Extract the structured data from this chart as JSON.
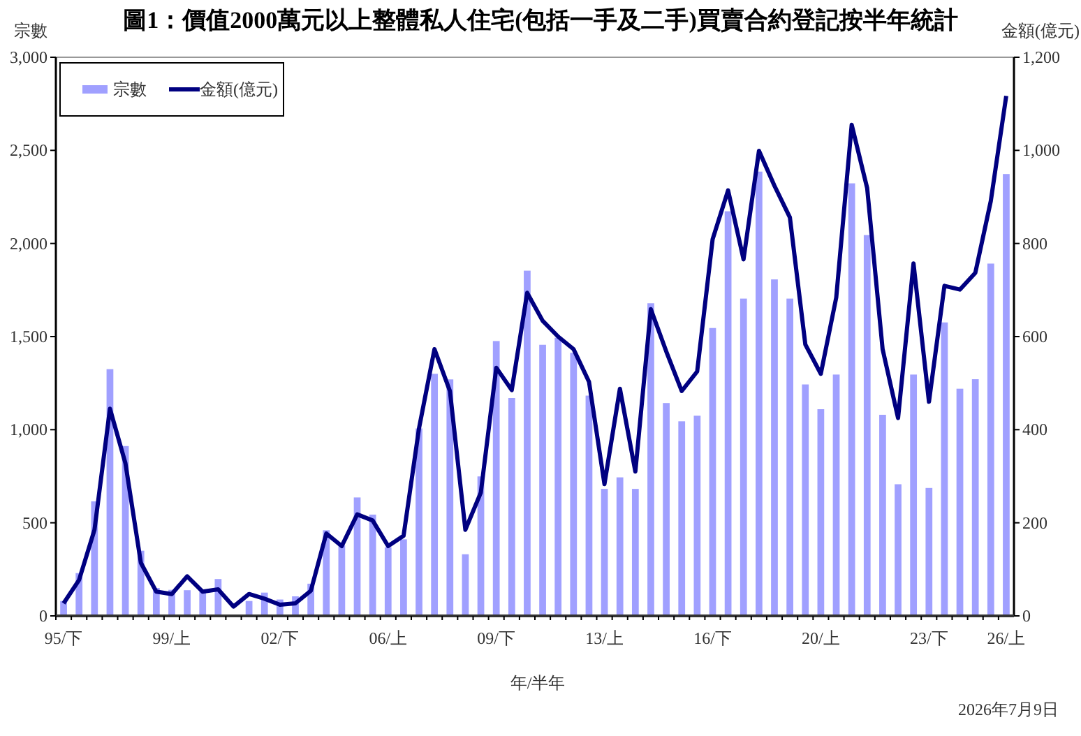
{
  "chart_data": {
    "type": "bar",
    "title": "圖1：價值2000萬元以上整體私人住宅(包括一手及二手)買賣合約登記按半年統計",
    "xlabel": "年/半年",
    "ylabel": "宗數",
    "y2label": "金額(億元)",
    "legend": "top left",
    "grid": false,
    "categories": [
      "95/下",
      null,
      null,
      null,
      null,
      null,
      null,
      "99/上",
      null,
      null,
      null,
      null,
      null,
      null,
      "02/下",
      null,
      null,
      null,
      null,
      null,
      null,
      "06/上",
      null,
      null,
      null,
      null,
      null,
      null,
      "09/下",
      null,
      null,
      null,
      null,
      null,
      null,
      "13/上",
      null,
      null,
      null,
      null,
      null,
      null,
      "16/下",
      null,
      null,
      null,
      null,
      null,
      null,
      "20/上",
      null,
      null,
      null,
      null,
      null,
      null,
      "23/下",
      null,
      null,
      null,
      null,
      "26/上"
    ],
    "series": [
      {
        "name": "宗數",
        "color": "#a0a0ff",
        "values": [
          80,
          230,
          615,
          1325,
          912,
          350,
          150,
          140,
          138,
          130,
          198,
          null,
          80,
          125,
          88,
          105,
          173,
          460,
          380,
          636,
          544,
          368,
          411,
          1007,
          1300,
          1270,
          331,
          749,
          1476,
          1170,
          1854,
          1456,
          1494,
          1413,
          1183,
          682,
          744,
          682,
          1679,
          1143,
          1045,
          1075,
          1546,
          2173,
          1704,
          2386,
          1807,
          1704,
          1243,
          1110,
          1296,
          2323,
          2045,
          1080,
          707,
          1296,
          687,
          1576,
          1220,
          1271,
          1892,
          2373
        ]
      },
      {
        "name": "金額(億元)",
        "type": "line",
        "axis": "y2",
        "color": "#000080",
        "values": [
          27,
          77,
          185,
          445,
          328,
          114,
          52,
          47,
          85,
          52,
          57,
          20,
          47,
          37,
          24,
          27,
          54,
          177,
          150,
          218,
          205,
          150,
          172,
          403,
          573,
          483,
          185,
          265,
          533,
          485,
          694,
          634,
          600,
          573,
          503,
          283,
          488,
          310,
          659,
          568,
          483,
          525,
          809,
          914,
          766,
          999,
          924,
          856,
          583,
          520,
          684,
          1055,
          919,
          573,
          425,
          757,
          460,
          709,
          701,
          737,
          891,
          1117
        ]
      }
    ],
    "ylim": [
      0,
      3000
    ],
    "yticks": [
      0,
      500,
      {
        "value": 1000,
        "label": "1,000"
      },
      {
        "value": 1500,
        "label": "1,500"
      },
      {
        "value": 2000,
        "label": "2,000"
      },
      {
        "value": 2500,
        "label": "2,500"
      },
      {
        "value": 3000,
        "label": "3,000"
      }
    ],
    "y2lim": [
      0,
      1200
    ],
    "y2ticks": [
      0,
      200,
      400,
      600,
      800,
      {
        "value": 1000,
        "label": "1,000"
      },
      {
        "value": 1200,
        "label": "1,200"
      }
    ],
    "annotations": [
      "2026年7月9日"
    ]
  }
}
